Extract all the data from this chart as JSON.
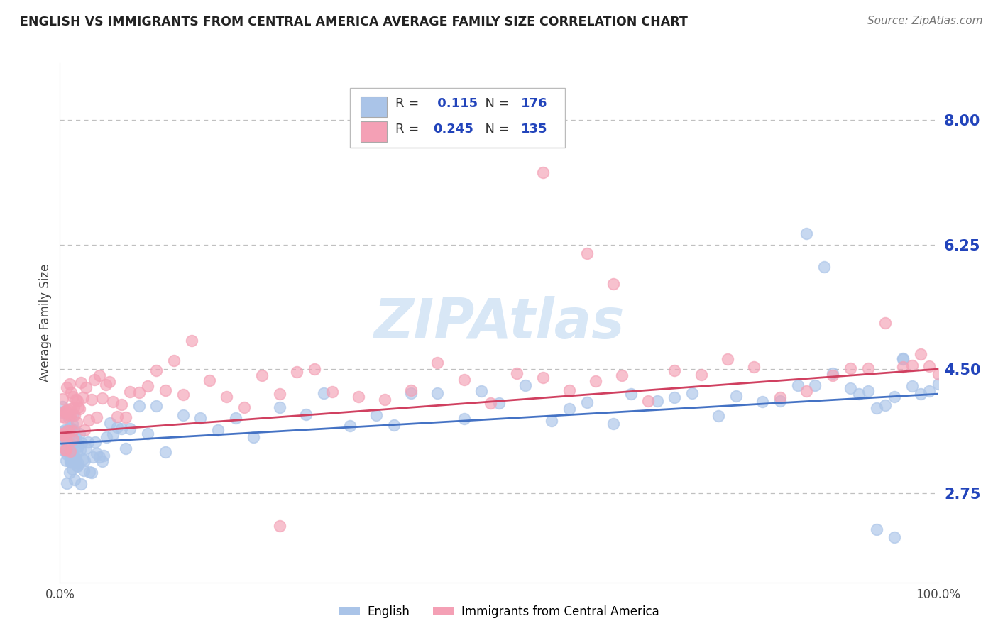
{
  "title": "ENGLISH VS IMMIGRANTS FROM CENTRAL AMERICA AVERAGE FAMILY SIZE CORRELATION CHART",
  "source_text": "Source: ZipAtlas.com",
  "ylabel": "Average Family Size",
  "ytick_values": [
    2.75,
    4.5,
    6.25,
    8.0
  ],
  "ytick_labels": [
    "2.75",
    "4.50",
    "6.25",
    "8.00"
  ],
  "xlim": [
    0,
    100
  ],
  "ylim": [
    1.5,
    8.8
  ],
  "r_english": 0.115,
  "n_english": 176,
  "r_immigrants": 0.245,
  "n_immigrants": 135,
  "english_color": "#aac4e8",
  "immigrants_color": "#f4a0b5",
  "english_line_color": "#4472c4",
  "immigrants_line_color": "#d04060",
  "title_color": "#222222",
  "tick_color": "#2244bb",
  "background_color": "#ffffff",
  "grid_color": "#c0c0c0",
  "watermark_color": "#b8d4f0",
  "eng_trend": [
    3.45,
    4.15
  ],
  "imm_trend": [
    3.6,
    4.5
  ],
  "english_x": [
    0.1,
    0.2,
    0.3,
    0.3,
    0.4,
    0.4,
    0.5,
    0.5,
    0.5,
    0.6,
    0.6,
    0.7,
    0.7,
    0.7,
    0.8,
    0.8,
    0.8,
    0.9,
    0.9,
    0.9,
    1.0,
    1.0,
    1.0,
    1.1,
    1.1,
    1.2,
    1.2,
    1.2,
    1.3,
    1.3,
    1.4,
    1.4,
    1.5,
    1.5,
    1.5,
    1.6,
    1.6,
    1.7,
    1.7,
    1.8,
    1.8,
    1.9,
    1.9,
    2.0,
    2.0,
    2.1,
    2.1,
    2.2,
    2.3,
    2.4,
    2.5,
    2.6,
    2.7,
    2.8,
    3.0,
    3.2,
    3.4,
    3.6,
    3.8,
    4.0,
    4.2,
    4.5,
    4.8,
    5.0,
    5.3,
    5.7,
    6.0,
    6.5,
    7.0,
    7.5,
    8.0,
    9.0,
    10.0,
    11.0,
    12.0,
    14.0,
    16.0,
    18.0,
    20.0,
    22.0,
    25.0,
    28.0,
    30.0,
    33.0,
    36.0,
    38.0,
    40.0,
    43.0,
    46.0,
    48.0,
    50.0,
    53.0,
    56.0,
    58.0,
    60.0,
    63.0,
    65.0,
    68.0,
    70.0,
    72.0,
    75.0,
    77.0,
    80.0,
    82.0,
    84.0,
    86.0,
    88.0,
    90.0,
    91.0,
    92.0,
    93.0,
    94.0,
    95.0,
    96.0,
    97.0,
    98.0,
    99.0,
    100.0,
    85.0,
    87.0,
    93.0,
    95.0,
    96.0
  ],
  "english_y": [
    3.8,
    3.6,
    3.5,
    3.7,
    3.4,
    3.6,
    3.3,
    3.5,
    3.7,
    3.4,
    3.6,
    3.3,
    3.5,
    3.7,
    3.2,
    3.4,
    3.6,
    3.3,
    3.5,
    3.7,
    3.4,
    3.6,
    3.8,
    3.3,
    3.5,
    3.2,
    3.4,
    3.6,
    3.3,
    3.5,
    3.2,
    3.4,
    3.3,
    3.5,
    3.7,
    3.4,
    3.6,
    3.3,
    3.5,
    3.2,
    3.4,
    3.3,
    3.5,
    3.2,
    3.4,
    3.3,
    3.5,
    3.4,
    3.3,
    3.2,
    3.4,
    3.3,
    3.2,
    3.1,
    3.2,
    3.3,
    3.2,
    3.1,
    3.2,
    3.3,
    3.4,
    3.3,
    3.4,
    3.5,
    3.4,
    3.5,
    3.6,
    3.5,
    3.6,
    3.5,
    3.6,
    3.7,
    3.6,
    3.7,
    3.8,
    3.7,
    3.8,
    3.7,
    3.8,
    3.9,
    4.0,
    3.8,
    3.9,
    3.8,
    4.0,
    3.8,
    4.0,
    4.1,
    3.9,
    4.1,
    4.0,
    4.1,
    3.9,
    4.0,
    4.1,
    4.0,
    4.1,
    4.0,
    4.1,
    4.2,
    4.1,
    4.2,
    4.1,
    4.2,
    4.3,
    4.2,
    4.1,
    4.2,
    4.1,
    4.2,
    4.3,
    4.0,
    4.1,
    4.2,
    4.3,
    4.1,
    4.2,
    4.5,
    6.2,
    5.8,
    2.1,
    2.3,
    4.4
  ],
  "immigrants_x": [
    0.1,
    0.2,
    0.3,
    0.3,
    0.4,
    0.5,
    0.5,
    0.6,
    0.6,
    0.7,
    0.7,
    0.8,
    0.8,
    0.9,
    0.9,
    1.0,
    1.0,
    1.1,
    1.1,
    1.2,
    1.2,
    1.3,
    1.3,
    1.4,
    1.5,
    1.5,
    1.6,
    1.7,
    1.8,
    1.9,
    2.0,
    2.1,
    2.2,
    2.4,
    2.6,
    2.8,
    3.0,
    3.3,
    3.6,
    3.9,
    4.2,
    4.5,
    4.8,
    5.2,
    5.6,
    6.0,
    6.5,
    7.0,
    7.5,
    8.0,
    9.0,
    10.0,
    11.0,
    12.0,
    13.0,
    14.0,
    15.0,
    17.0,
    19.0,
    21.0,
    23.0,
    25.0,
    27.0,
    29.0,
    31.0,
    34.0,
    37.0,
    40.0,
    43.0,
    46.0,
    49.0,
    52.0,
    55.0,
    58.0,
    61.0,
    64.0,
    67.0,
    70.0,
    73.0,
    76.0,
    79.0,
    82.0,
    85.0,
    88.0,
    90.0,
    92.0,
    94.0,
    96.0,
    97.0,
    98.0,
    99.0,
    100.0,
    55.0,
    60.0,
    25.0,
    63.0
  ],
  "immigrants_y": [
    3.9,
    3.7,
    3.6,
    3.8,
    3.7,
    3.8,
    4.0,
    3.7,
    3.9,
    3.6,
    3.8,
    3.7,
    3.9,
    3.8,
    4.0,
    3.7,
    3.9,
    3.8,
    4.0,
    3.7,
    3.9,
    3.8,
    4.0,
    3.9,
    3.8,
    4.0,
    3.9,
    3.8,
    4.0,
    3.9,
    4.0,
    3.9,
    4.1,
    3.9,
    4.0,
    3.9,
    4.1,
    4.0,
    3.9,
    4.1,
    4.0,
    4.2,
    4.0,
    4.1,
    3.9,
    4.1,
    4.0,
    4.2,
    4.0,
    4.2,
    4.1,
    4.2,
    4.3,
    4.2,
    4.3,
    4.2,
    4.3,
    4.2,
    4.3,
    4.2,
    4.3,
    4.2,
    4.3,
    4.4,
    4.2,
    4.3,
    4.4,
    4.3,
    4.4,
    4.3,
    4.3,
    4.4,
    4.3,
    4.4,
    4.3,
    4.4,
    4.3,
    4.4,
    4.3,
    4.4,
    4.3,
    4.4,
    4.4,
    4.3,
    4.4,
    4.4,
    4.3,
    4.4,
    4.3,
    4.5,
    4.4,
    4.5,
    7.1,
    6.3,
    2.35,
    5.8
  ]
}
